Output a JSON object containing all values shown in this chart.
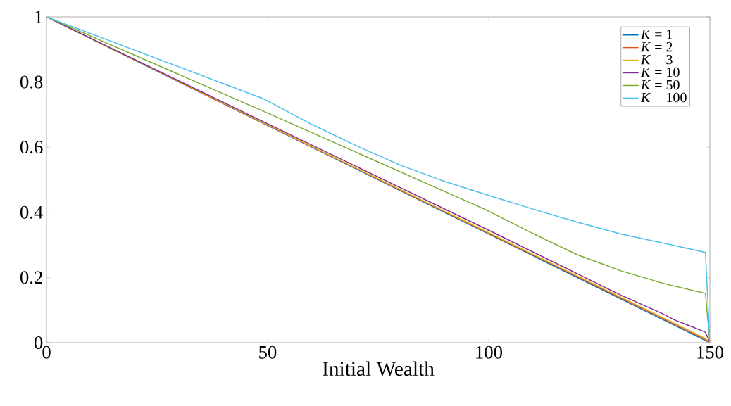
{
  "chart_data": {
    "type": "line",
    "xlabel": "Initial Wealth",
    "xlim": [
      0,
      150
    ],
    "ylim": [
      0,
      1
    ],
    "xticks": [
      0,
      50,
      100,
      150
    ],
    "yticks": [
      0,
      {
        "value": 0.2,
        "label": "0.2"
      },
      {
        "value": 0.4,
        "label": "0.4"
      },
      {
        "value": 0.6,
        "label": "0.6"
      },
      {
        "value": 0.8,
        "label": "0.8"
      },
      1
    ],
    "grid": false,
    "legend": "top right",
    "marker": "none",
    "line_style": "solid",
    "series": [
      {
        "name": "*K* = 1",
        "color": "#0072bd",
        "x": [
          0,
          150
        ],
        "values": [
          1,
          0
        ]
      },
      {
        "name": "*K* = 2",
        "color": "#d95319",
        "x": [
          0,
          149,
          150
        ],
        "values": [
          1,
          0.01,
          0
        ]
      },
      {
        "name": "*K* = 3",
        "color": "#edb120",
        "x": [
          0,
          149,
          150
        ],
        "values": [
          1,
          0.013,
          0
        ]
      },
      {
        "name": "*K* = 10",
        "color": "#7e2f8e",
        "x": [
          0,
          50,
          100,
          130,
          139,
          142,
          145,
          149,
          150
        ],
        "values": [
          1,
          0.672,
          0.345,
          0.145,
          0.091,
          0.07,
          0.054,
          0.032,
          0
        ]
      },
      {
        "name": "*K* = 50",
        "color": "#77ac30",
        "x": [
          0,
          50,
          99,
          110,
          120,
          125,
          130,
          140,
          149,
          150
        ],
        "values": [
          1,
          0.705,
          0.41,
          0.335,
          0.27,
          0.245,
          0.22,
          0.18,
          0.151,
          0
        ]
      },
      {
        "name": "*K* = 100",
        "color": "#4dbeee",
        "x": [
          0,
          49,
          60,
          70,
          80,
          90,
          100,
          110,
          120,
          130,
          140,
          149,
          150
        ],
        "values": [
          1,
          0.749,
          0.67,
          0.605,
          0.545,
          0.495,
          0.452,
          0.41,
          0.37,
          0.333,
          0.304,
          0.277,
          0
        ]
      }
    ]
  }
}
